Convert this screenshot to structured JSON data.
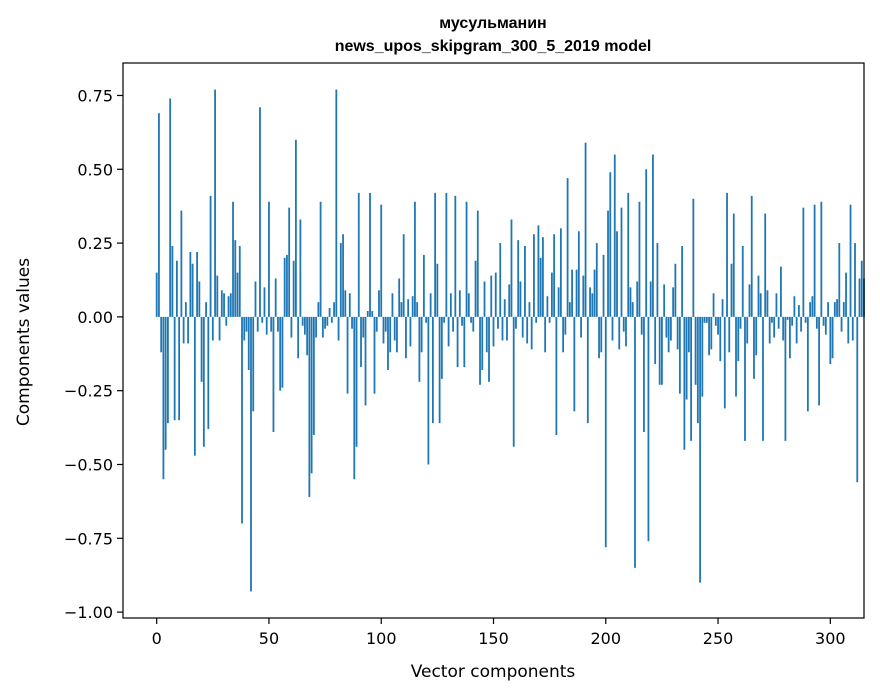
{
  "chart_data": {
    "type": "bar",
    "title_line1": "мусульманин",
    "title_line2": "news_upos_skipgram_300_5_2019 model",
    "xlabel": "Vector components",
    "ylabel": "Components values",
    "xlim": [
      -15,
      315
    ],
    "ylim": [
      -1.02,
      0.86
    ],
    "xticks": [
      0,
      50,
      100,
      150,
      200,
      250,
      300
    ],
    "yticks": [
      -1.0,
      -0.75,
      -0.5,
      -0.25,
      0.0,
      0.25,
      0.5,
      0.75
    ],
    "xtick_labels": [
      "0",
      "50",
      "100",
      "150",
      "200",
      "250",
      "300"
    ],
    "ytick_labels": [
      "−1.00",
      "−0.75",
      "−0.50",
      "−0.25",
      "0.00",
      "0.25",
      "0.50",
      "0.75"
    ],
    "bar_color": "#1f77b4",
    "values": [
      0.15,
      0.69,
      -0.12,
      -0.55,
      -0.45,
      -0.36,
      0.74,
      0.24,
      -0.35,
      0.19,
      -0.35,
      0.36,
      -0.09,
      0.05,
      -0.09,
      0.22,
      0.18,
      -0.47,
      0.22,
      0.12,
      -0.22,
      -0.44,
      0.05,
      -0.38,
      0.41,
      -0.08,
      0.77,
      0.14,
      -0.08,
      0.09,
      0.08,
      -0.03,
      0.07,
      0.08,
      0.39,
      0.26,
      0.15,
      0.24,
      -0.7,
      -0.08,
      -0.05,
      -0.18,
      -0.93,
      -0.32,
      0.12,
      -0.05,
      0.71,
      -0.02,
      0.1,
      -0.06,
      0.39,
      -0.05,
      -0.39,
      0.13,
      -0.05,
      -0.25,
      -0.24,
      0.2,
      0.21,
      0.37,
      -0.07,
      0.19,
      0.6,
      -0.14,
      0.33,
      -0.03,
      -0.06,
      -0.13,
      -0.61,
      -0.53,
      -0.4,
      -0.07,
      0.05,
      0.39,
      -0.07,
      -0.04,
      -0.03,
      0.03,
      -0.02,
      0.05,
      0.77,
      -0.08,
      0.25,
      0.28,
      0.09,
      -0.26,
      0.08,
      -0.04,
      -0.55,
      -0.44,
      0.42,
      -0.17,
      -0.07,
      -0.3,
      0.02,
      0.42,
      0.02,
      -0.26,
      -0.05,
      0.09,
      0.38,
      -0.09,
      -0.05,
      -0.18,
      -0.12,
      0.08,
      -0.08,
      -0.12,
      0.13,
      0.05,
      0.28,
      -0.14,
      0.06,
      -0.1,
      0.07,
      0.39,
      0.05,
      -0.22,
      -0.12,
      0.21,
      -0.02,
      -0.5,
      0.08,
      -0.36,
      0.42,
      0.18,
      -0.36,
      -0.21,
      -0.02,
      0.42,
      -0.1,
      0.08,
      -0.05,
      0.41,
      -0.17,
      0.09,
      -0.03,
      -0.17,
      0.39,
      0.08,
      -0.02,
      -0.05,
      0.19,
      0.36,
      -0.23,
      -0.18,
      0.12,
      -0.12,
      -0.22,
      0.14,
      -0.1,
      0.15,
      -0.04,
      0.25,
      -0.08,
      0.06,
      -0.08,
      0.11,
      0.33,
      -0.44,
      -0.04,
      0.26,
      0.12,
      -0.07,
      0.24,
      -0.09,
      0.05,
      -0.11,
      0.28,
      -0.02,
      0.31,
      0.2,
      0.27,
      -0.12,
      0.07,
      -0.02,
      0.15,
      0.28,
      -0.4,
      0.1,
      0.3,
      -0.12,
      -0.06,
      0.47,
      0.05,
      0.16,
      -0.32,
      0.16,
      0.29,
      -0.07,
      0.14,
      0.59,
      -0.36,
      0.1,
      0.08,
      0.16,
      0.25,
      -0.14,
      -0.12,
      0.21,
      -0.78,
      0.36,
      0.49,
      -0.08,
      0.55,
      0.29,
      -0.11,
      0.37,
      -0.05,
      -0.1,
      0.42,
      0.1,
      0.05,
      -0.85,
      0.12,
      0.39,
      -0.06,
      -0.39,
      0.5,
      -0.76,
      0.12,
      0.55,
      -0.16,
      0.25,
      -0.23,
      -0.23,
      0.11,
      -0.07,
      -0.12,
      -0.08,
      0.1,
      0.18,
      -0.11,
      -0.26,
      0.24,
      -0.45,
      -0.28,
      -0.12,
      -0.42,
      0.4,
      -0.23,
      -0.36,
      -0.9,
      -0.27,
      -0.02,
      -0.02,
      -0.13,
      -0.11,
      0.08,
      -0.03,
      -0.06,
      -0.15,
      0.06,
      -0.31,
      0.42,
      -0.12,
      0.18,
      0.35,
      -0.27,
      -0.15,
      -0.04,
      0.24,
      -0.42,
      -0.09,
      0.11,
      0.41,
      -0.21,
      -0.13,
      0.14,
      0.08,
      -0.42,
      0.35,
      0.09,
      -0.09,
      -0.02,
      -0.07,
      0.08,
      -0.04,
      0.17,
      -0.08,
      -0.42,
      -0.01,
      -0.14,
      -0.03,
      0.07,
      -0.09,
      0.04,
      -0.05,
      0.37,
      -0.02,
      -0.32,
      0.05,
      0.07,
      0.38,
      -0.04,
      -0.3,
      0.39,
      -0.03,
      -0.06,
      0.05,
      -0.16,
      -0.14,
      0.05,
      0.06,
      0.25,
      -0.05,
      0.05,
      0.15,
      -0.09,
      0.38,
      -0.08,
      0.25,
      -0.56,
      0.13,
      0.19,
      0.13
    ]
  }
}
